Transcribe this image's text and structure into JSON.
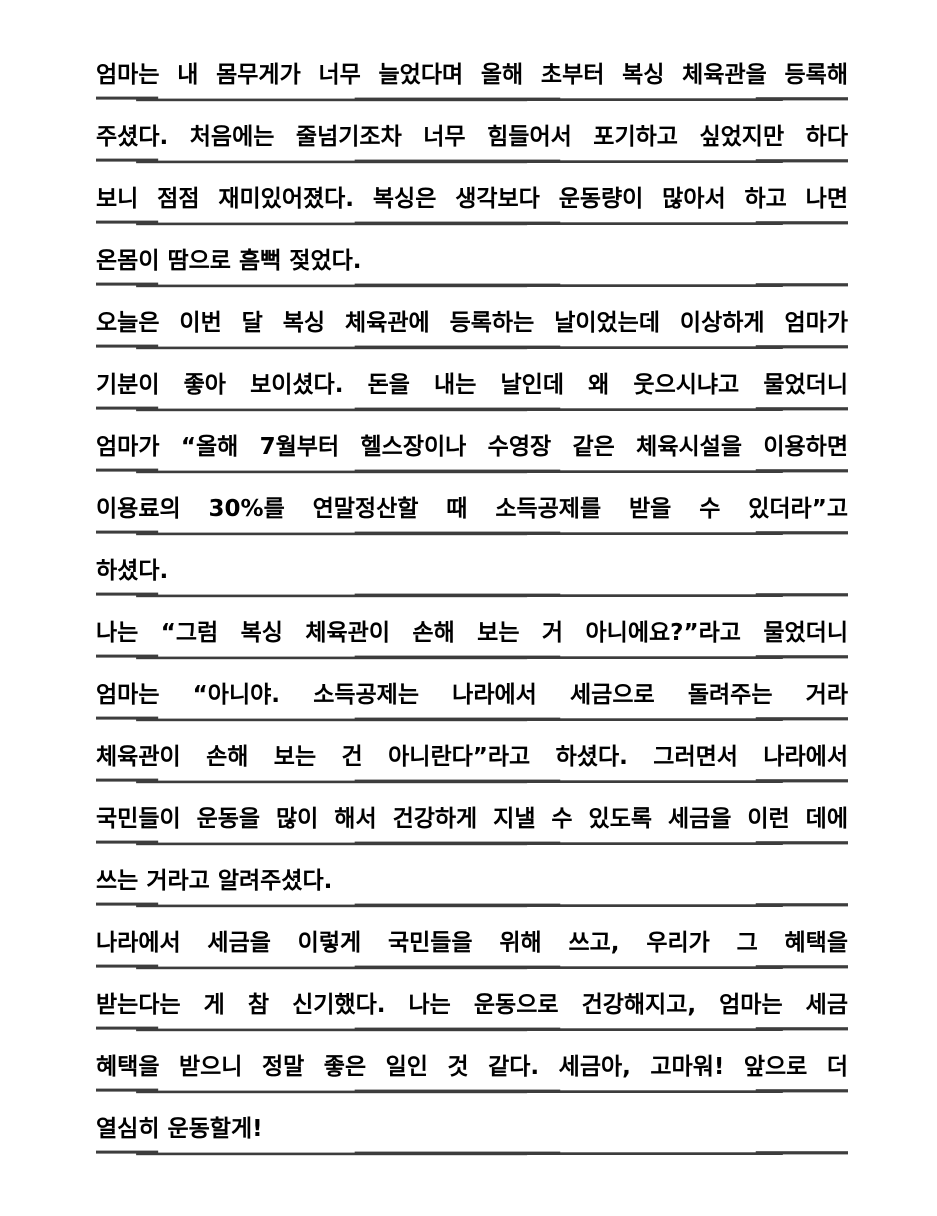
{
  "page": {
    "background_color": "#ffffff",
    "text_color": "#000000",
    "rule_color": "#3d3d3d"
  },
  "document": {
    "language": "ko",
    "type": "diary-entry",
    "paragraphs": [
      {
        "lines": [
          "엄마는 내 몸무게가 너무 늘었다며 올해 초부터 복싱 체육관을 등록해",
          "주셨다. 처음에는 줄넘기조차 너무 힘들어서 포기하고 싶었지만 하다",
          "보니 점점 재미있어졌다. 복싱은 생각보다 운동량이 많아서 하고 나면",
          "온몸이 땀으로 흠뻑 젖었다."
        ]
      },
      {
        "lines": [
          "오늘은 이번 달 복싱 체육관에 등록하는 날이었는데 이상하게 엄마가",
          "기분이 좋아 보이셨다. 돈을 내는 날인데 왜 웃으시냐고 물었더니",
          "엄마가 “올해 7월부터 헬스장이나 수영장 같은 체육시설을 이용하면",
          "이용료의 30%를 연말정산할 때 소득공제를 받을 수 있더라”고",
          "하셨다."
        ]
      },
      {
        "lines": [
          "나는 “그럼 복싱 체육관이 손해 보는 거 아니에요?”라고 물었더니",
          "엄마는 “아니야. 소득공제는 나라에서 세금으로 돌려주는 거라",
          "체육관이 손해 보는 건 아니란다”라고 하셨다. 그러면서 나라에서",
          "국민들이 운동을 많이 해서 건강하게 지낼 수 있도록 세금을 이런 데에",
          "쓰는 거라고 알려주셨다."
        ]
      },
      {
        "lines": [
          "나라에서 세금을 이렇게 국민들을 위해 쓰고, 우리가 그 혜택을",
          "받는다는 게 참 신기했다. 나는 운동으로 건강해지고, 엄마는 세금",
          "혜택을 받으니 정말 좋은 일인 것 같다. 세금아, 고마워! 앞으로 더",
          "열심히 운동할게!"
        ]
      }
    ]
  }
}
